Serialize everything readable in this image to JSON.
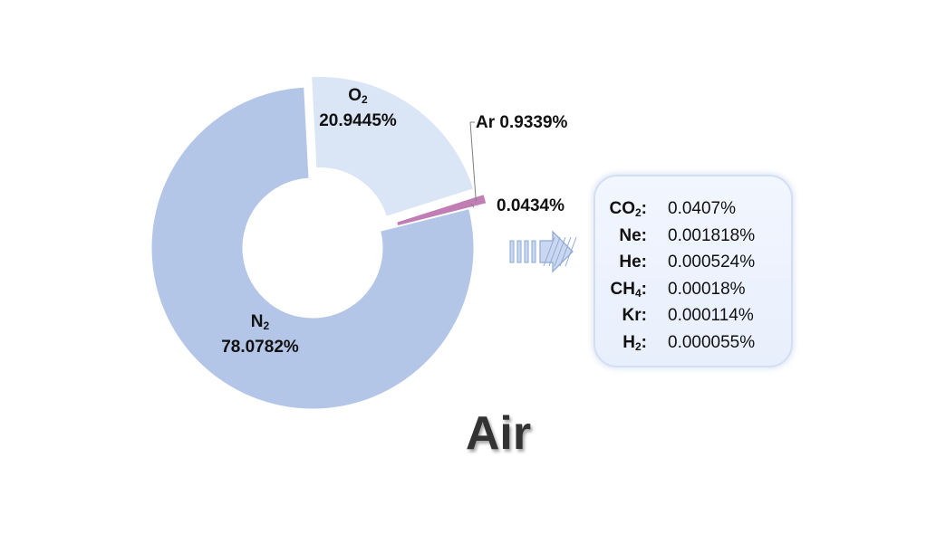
{
  "title": "Air",
  "chart_data": {
    "type": "pie",
    "style": "donut",
    "title": "",
    "slices": [
      {
        "name": "N",
        "sub": "2",
        "value": 78.0782,
        "label": "78.0782%",
        "color": "#b4c6e7",
        "exploded": false
      },
      {
        "name": "O",
        "sub": "2",
        "value": 20.9445,
        "label": "20.9445%",
        "color": "#dae5f5",
        "exploded": true
      },
      {
        "name": "Ar",
        "sub": "",
        "value": 0.9339,
        "label": "0.9339%",
        "color": "#c07eb4",
        "exploded": true
      },
      {
        "name": "",
        "sub": "",
        "value": 0.0434,
        "label": "0.0434%",
        "color": "#7d95c9",
        "exploded": true
      }
    ],
    "breakdown": [
      {
        "name": "CO",
        "sub": "2",
        "suffix": ":",
        "value": "0.0407%"
      },
      {
        "name": "Ne",
        "sub": "",
        "suffix": ":",
        "value": "0.001818%"
      },
      {
        "name": "He",
        "sub": "",
        "suffix": ":",
        "value": "0.000524%"
      },
      {
        "name": "CH",
        "sub": "4",
        "suffix": ":",
        "value": "0.00018%"
      },
      {
        "name": "Kr",
        "sub": "",
        "suffix": ":",
        "value": "0.000114%"
      },
      {
        "name": "H",
        "sub": "2",
        "suffix": ":",
        "value": "0.000055%"
      }
    ]
  }
}
